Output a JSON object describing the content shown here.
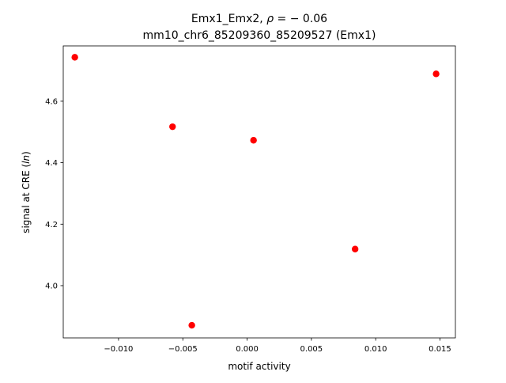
{
  "chart_data": {
    "type": "scatter",
    "title_line1_prefix": "Emx1_Emx2, ",
    "title_line1_rho": "ρ",
    "title_line1_suffix": " = − 0.06",
    "title_line2": "mm10_chr6_85209360_85209527 (Emx1)",
    "xlabel": "motif activity",
    "ylabel_prefix": "signal at CRE (",
    "ylabel_italic": "ln",
    "ylabel_suffix": ")",
    "xlim": [
      -0.0143,
      0.0162
    ],
    "ylim": [
      3.83,
      4.78
    ],
    "xticks": [
      {
        "value": -0.01,
        "label": "−0.010"
      },
      {
        "value": -0.005,
        "label": "−0.005"
      },
      {
        "value": 0.0,
        "label": "0.000"
      },
      {
        "value": 0.005,
        "label": "0.005"
      },
      {
        "value": 0.01,
        "label": "0.010"
      },
      {
        "value": 0.015,
        "label": "0.015"
      }
    ],
    "yticks": [
      {
        "value": 4.0,
        "label": "4.0"
      },
      {
        "value": 4.2,
        "label": "4.2"
      },
      {
        "value": 4.4,
        "label": "4.4"
      },
      {
        "value": 4.6,
        "label": "4.6"
      }
    ],
    "point_color": "#ff0000",
    "points": [
      {
        "x": -0.0134,
        "y": 4.743
      },
      {
        "x": -0.0058,
        "y": 4.517
      },
      {
        "x": -0.0043,
        "y": 3.871
      },
      {
        "x": 0.0005,
        "y": 4.473
      },
      {
        "x": 0.0084,
        "y": 4.119
      },
      {
        "x": 0.0147,
        "y": 4.689
      }
    ],
    "grid": false,
    "legend": "none"
  }
}
